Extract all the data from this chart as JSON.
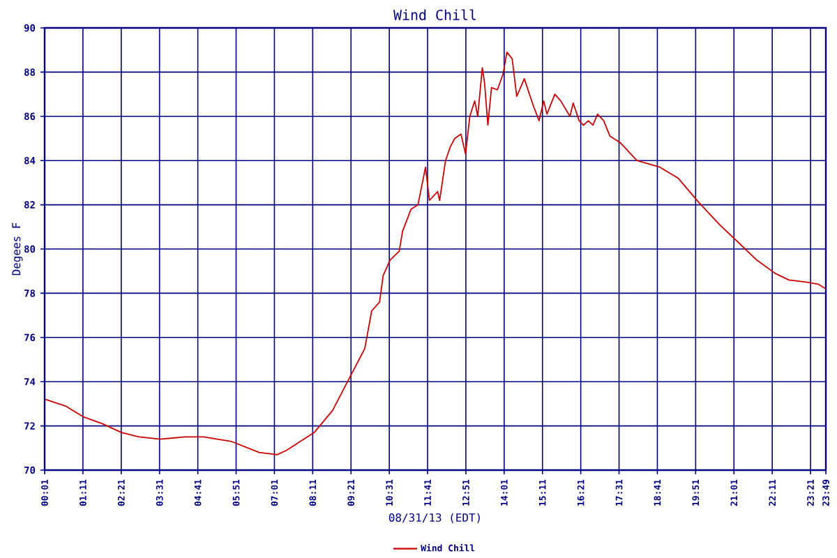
{
  "chart_data": {
    "type": "line",
    "title": "Wind Chill",
    "xlabel": "08/31/13 (EDT)",
    "ylabel": "Degees F",
    "xlim": [
      0.0167,
      23.8167
    ],
    "ylim": [
      70,
      90
    ],
    "yticks": [
      70,
      72,
      74,
      76,
      78,
      80,
      82,
      84,
      86,
      88,
      90
    ],
    "xticks": [
      {
        "value": 0.0167,
        "label": "00:01"
      },
      {
        "value": 1.1833,
        "label": "01:11"
      },
      {
        "value": 2.35,
        "label": "02:21"
      },
      {
        "value": 3.5167,
        "label": "03:31"
      },
      {
        "value": 4.6833,
        "label": "04:41"
      },
      {
        "value": 5.85,
        "label": "05:51"
      },
      {
        "value": 7.0167,
        "label": "07:01"
      },
      {
        "value": 8.1833,
        "label": "08:11"
      },
      {
        "value": 9.35,
        "label": "09:21"
      },
      {
        "value": 10.5167,
        "label": "10:31"
      },
      {
        "value": 11.6833,
        "label": "11:41"
      },
      {
        "value": 12.85,
        "label": "12:51"
      },
      {
        "value": 14.0167,
        "label": "14:01"
      },
      {
        "value": 15.1833,
        "label": "15:11"
      },
      {
        "value": 16.35,
        "label": "16:21"
      },
      {
        "value": 17.5167,
        "label": "17:31"
      },
      {
        "value": 18.6833,
        "label": "18:41"
      },
      {
        "value": 19.85,
        "label": "19:51"
      },
      {
        "value": 21.0167,
        "label": "21:01"
      },
      {
        "value": 22.1833,
        "label": "22:11"
      },
      {
        "value": 23.35,
        "label": "23:21"
      },
      {
        "value": 23.8167,
        "label": "23:49"
      }
    ],
    "grid": true,
    "legend": "bottom",
    "marker": "none",
    "line_style": "solid",
    "series": [
      {
        "name": "Wind Chill",
        "color": "#cc0000",
        "x": [
          0.04,
          0.65,
          1.21,
          1.77,
          2.36,
          2.89,
          3.54,
          4.28,
          4.86,
          5.7,
          6.55,
          7.1,
          7.39,
          8.23,
          8.79,
          9.35,
          9.77,
          9.98,
          10.22,
          10.33,
          10.54,
          10.82,
          10.92,
          11.18,
          11.39,
          11.62,
          11.74,
          11.99,
          12.05,
          12.23,
          12.37,
          12.51,
          12.7,
          12.84,
          12.97,
          13.12,
          13.21,
          13.35,
          13.42,
          13.52,
          13.63,
          13.81,
          13.98,
          14.1,
          14.26,
          14.4,
          14.63,
          14.9,
          15.08,
          15.22,
          15.32,
          15.56,
          15.74,
          16.02,
          16.12,
          16.3,
          16.43,
          16.58,
          16.72,
          16.86,
          17.05,
          17.24,
          17.56,
          18.06,
          18.76,
          19.32,
          19.95,
          20.58,
          21.15,
          21.71,
          22.27,
          22.69,
          23.25,
          23.6,
          23.81
        ],
        "values": [
          73.2,
          72.9,
          72.4,
          72.1,
          71.7,
          71.5,
          71.4,
          71.5,
          71.5,
          71.3,
          70.8,
          70.7,
          70.9,
          71.7,
          72.7,
          74.3,
          75.5,
          77.2,
          77.6,
          78.8,
          79.5,
          79.9,
          80.8,
          81.8,
          82.0,
          83.7,
          82.2,
          82.6,
          82.2,
          84.0,
          84.6,
          85.0,
          85.2,
          84.3,
          86.0,
          86.7,
          86.0,
          88.2,
          87.5,
          85.6,
          87.3,
          87.2,
          87.9,
          88.9,
          88.6,
          86.9,
          87.7,
          86.5,
          85.8,
          86.7,
          86.1,
          87.0,
          86.7,
          86.0,
          86.6,
          85.8,
          85.6,
          85.8,
          85.6,
          86.1,
          85.8,
          85.1,
          84.8,
          84.0,
          83.7,
          83.2,
          82.1,
          81.1,
          80.3,
          79.5,
          78.9,
          78.6,
          78.5,
          78.4,
          78.2
        ]
      }
    ]
  }
}
